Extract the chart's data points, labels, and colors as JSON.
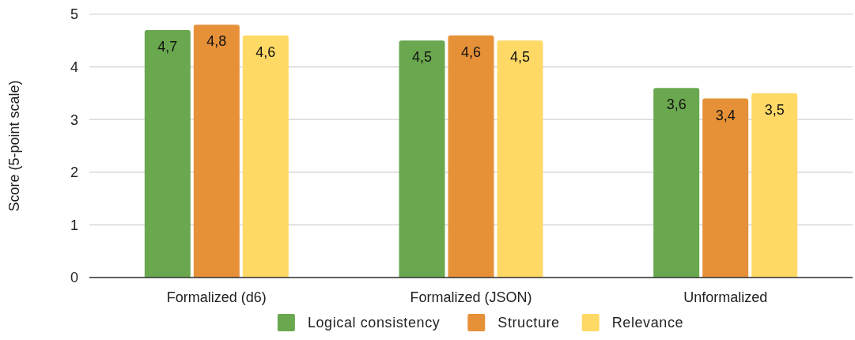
{
  "chart_data": {
    "type": "bar",
    "ylabel": "Score (5-point scale)",
    "categories": [
      "Formalized (d6)",
      "Formalized (JSON)",
      "Unformalized"
    ],
    "series": [
      {
        "name": "Logical consistency",
        "color": "#6aa84f",
        "values": [
          4.7,
          4.5,
          3.6
        ],
        "value_labels": [
          "4,7",
          "4,5",
          "3,6"
        ]
      },
      {
        "name": "Structure",
        "color": "#e69138",
        "values": [
          4.8,
          4.6,
          3.4
        ],
        "value_labels": [
          "4,8",
          "4,6",
          "3,4"
        ]
      },
      {
        "name": "Relevance",
        "color": "#ffd966",
        "values": [
          4.6,
          4.5,
          3.5
        ],
        "value_labels": [
          "4,6",
          "4,5",
          "3,5"
        ]
      }
    ],
    "ylim": [
      0,
      5
    ],
    "yticks": [
      0,
      1,
      2,
      3,
      4,
      5
    ],
    "grid": "y",
    "legend": "bottom"
  }
}
